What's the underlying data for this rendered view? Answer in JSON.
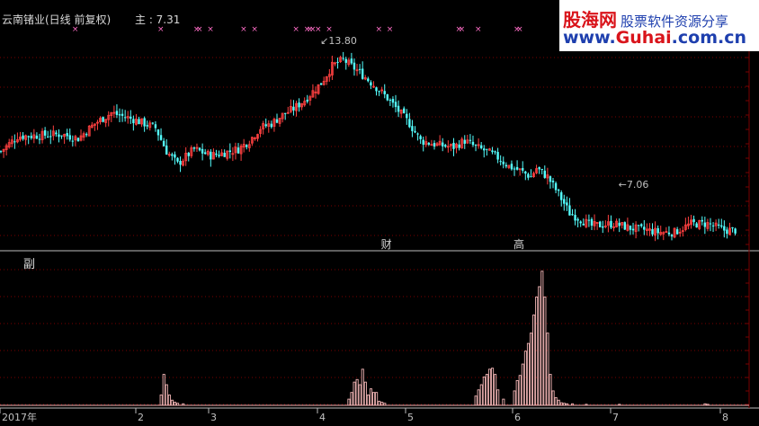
{
  "header": {
    "title": "云南锗业(日线 前复权)",
    "main_label": "主 : 7.31"
  },
  "sub_panel": {
    "label": "副"
  },
  "watermark": {
    "logo": "股海网",
    "slogan": "股票软件资源分享",
    "url_prefix": "www.",
    "url_mid": "Guhai",
    "url_suffix": ".com.cn"
  },
  "colors": {
    "up": "#ff4040",
    "down": "#54ffff",
    "volume_bar": "#f0b4b4",
    "markers": "#ff6ec7",
    "grid": "#7a0000",
    "axis_text": "#c0c0c0",
    "annotation": "#c0c0c0"
  },
  "chart_data": [
    {
      "type": "line",
      "name": "price",
      "x_ticks": [
        "2017年",
        "2",
        "3",
        "4",
        "5",
        "6",
        "7",
        "8"
      ],
      "anchors": [
        [
          0,
          8.6
        ],
        [
          6,
          9.3
        ],
        [
          22,
          9.4
        ],
        [
          28,
          9.2
        ],
        [
          34,
          9.9
        ],
        [
          40,
          10.4
        ],
        [
          48,
          10.1
        ],
        [
          56,
          9.7
        ],
        [
          60,
          8.6
        ],
        [
          64,
          8.0
        ],
        [
          70,
          8.7
        ],
        [
          76,
          8.4
        ],
        [
          80,
          8.5
        ],
        [
          86,
          8.7
        ],
        [
          90,
          9.1
        ],
        [
          94,
          9.7
        ],
        [
          98,
          9.9
        ],
        [
          102,
          10.3
        ],
        [
          106,
          10.6
        ],
        [
          110,
          11.0
        ],
        [
          116,
          11.8
        ],
        [
          120,
          12.6
        ],
        [
          124,
          12.9
        ],
        [
          130,
          12.3
        ],
        [
          136,
          11.6
        ],
        [
          140,
          11.1
        ],
        [
          144,
          10.5
        ],
        [
          148,
          9.9
        ],
        [
          152,
          9.1
        ],
        [
          158,
          8.9
        ],
        [
          164,
          8.8
        ],
        [
          168,
          9.1
        ],
        [
          172,
          8.8
        ],
        [
          176,
          8.6
        ],
        [
          180,
          8.3
        ],
        [
          184,
          7.9
        ],
        [
          188,
          7.7
        ],
        [
          192,
          7.4
        ],
        [
          194,
          7.8
        ],
        [
          198,
          7.4
        ],
        [
          202,
          6.6
        ],
        [
          206,
          5.7
        ],
        [
          210,
          5.4
        ],
        [
          214,
          5.1
        ],
        [
          222,
          5.2
        ],
        [
          228,
          5.0
        ],
        [
          234,
          4.9
        ],
        [
          238,
          4.8
        ],
        [
          244,
          4.8
        ],
        [
          250,
          5.2
        ],
        [
          256,
          5.2
        ],
        [
          262,
          4.9
        ],
        [
          266,
          4.9
        ]
      ],
      "annotations": [
        {
          "label": "↙13.80",
          "x": 116,
          "y": 13.8
        },
        {
          "label": "←7.06",
          "x": 224,
          "y": 7.06
        }
      ],
      "markers": {
        "symbol": "×",
        "x": [
          26,
          57,
          70,
          71,
          75,
          87,
          91,
          106,
          110,
          111,
          112,
          114,
          118,
          136,
          140,
          165,
          166,
          172,
          186,
          187
        ]
      },
      "event_labels": [
        {
          "label": "财",
          "x": 138
        },
        {
          "label": "高",
          "x": 186
        }
      ],
      "ylim": [
        4.4,
        14.1
      ]
    },
    {
      "type": "bar",
      "name": "sub-indicator",
      "bars": [
        [
          58,
          20
        ],
        [
          59,
          60
        ],
        [
          60,
          40
        ],
        [
          61,
          20
        ],
        [
          62,
          10
        ],
        [
          63,
          6
        ],
        [
          64,
          4
        ],
        [
          66,
          3
        ],
        [
          126,
          12
        ],
        [
          127,
          25
        ],
        [
          128,
          45
        ],
        [
          129,
          50
        ],
        [
          130,
          40
        ],
        [
          131,
          70
        ],
        [
          132,
          45
        ],
        [
          133,
          20
        ],
        [
          134,
          32
        ],
        [
          135,
          25
        ],
        [
          136,
          25
        ],
        [
          137,
          8
        ],
        [
          138,
          6
        ],
        [
          139,
          4
        ],
        [
          172,
          18
        ],
        [
          173,
          30
        ],
        [
          174,
          40
        ],
        [
          175,
          55
        ],
        [
          176,
          60
        ],
        [
          177,
          70
        ],
        [
          178,
          72
        ],
        [
          179,
          60
        ],
        [
          180,
          30
        ],
        [
          182,
          12
        ],
        [
          186,
          28
        ],
        [
          187,
          48
        ],
        [
          188,
          58
        ],
        [
          189,
          80
        ],
        [
          190,
          105
        ],
        [
          191,
          120
        ],
        [
          192,
          140
        ],
        [
          193,
          175
        ],
        [
          194,
          210
        ],
        [
          195,
          230
        ],
        [
          196,
          260
        ],
        [
          197,
          210
        ],
        [
          198,
          140
        ],
        [
          199,
          60
        ],
        [
          200,
          28
        ],
        [
          201,
          15
        ],
        [
          202,
          10
        ],
        [
          203,
          5
        ],
        [
          204,
          4
        ],
        [
          205,
          3
        ],
        [
          207,
          3
        ],
        [
          212,
          2
        ],
        [
          224,
          2
        ],
        [
          255,
          3
        ],
        [
          256,
          2
        ]
      ],
      "ylim": [
        0,
        270
      ]
    }
  ]
}
